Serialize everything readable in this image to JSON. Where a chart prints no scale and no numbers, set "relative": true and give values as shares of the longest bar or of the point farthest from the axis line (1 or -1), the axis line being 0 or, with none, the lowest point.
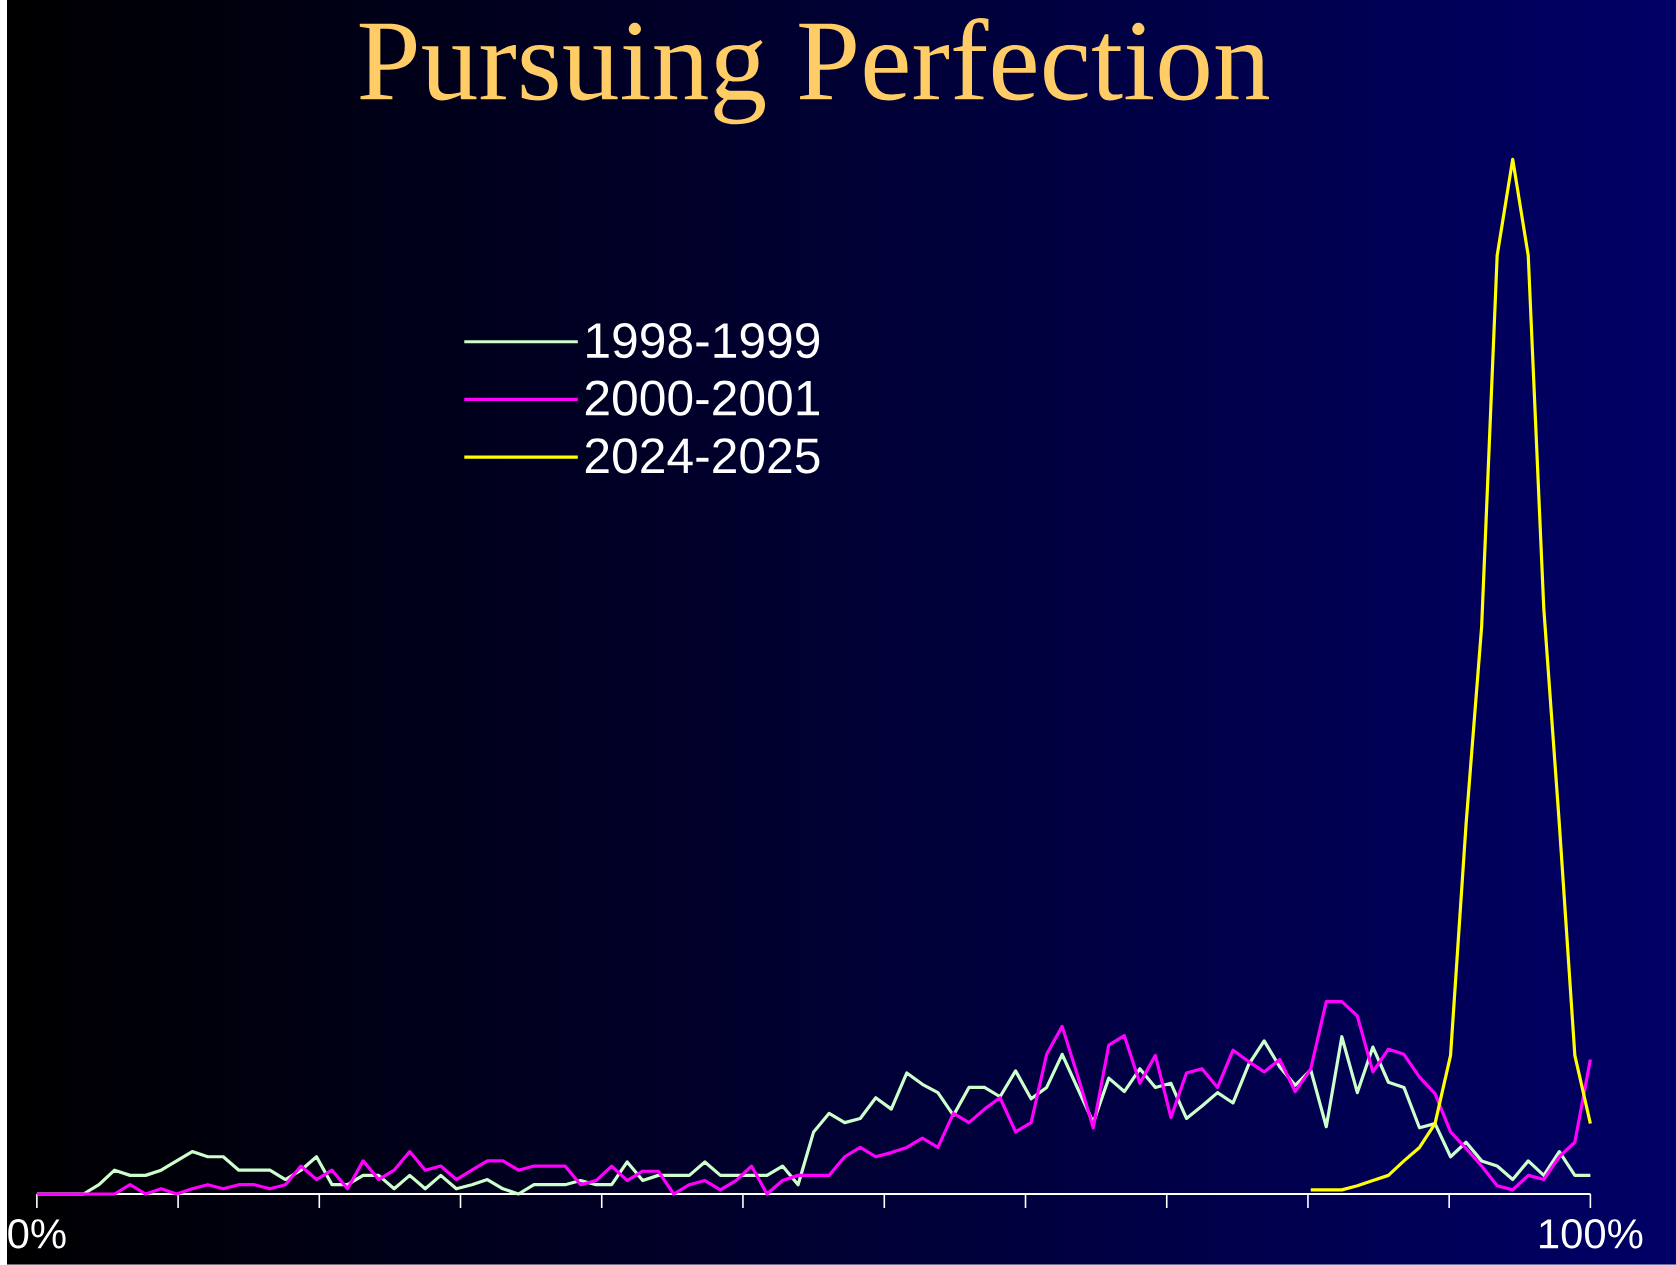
{
  "chart_data": {
    "type": "line",
    "title": "Pursuing Perfection",
    "relative": true,
    "tick_labels": "x",
    "legend": "top left",
    "x": [
      0,
      1,
      2,
      3,
      4,
      5,
      6,
      7,
      8,
      9,
      10,
      11,
      12,
      13,
      14,
      15,
      16,
      17,
      18,
      19,
      20,
      21,
      22,
      23,
      24,
      25,
      26,
      27,
      28,
      29,
      30,
      31,
      32,
      33,
      34,
      35,
      36,
      37,
      38,
      39,
      40,
      41,
      42,
      43,
      44,
      45,
      46,
      47,
      48,
      49,
      50,
      51,
      52,
      53,
      54,
      55,
      56,
      57,
      58,
      59,
      60,
      61,
      62,
      63,
      64,
      65,
      66,
      67,
      68,
      69,
      70,
      71,
      72,
      73,
      74,
      75,
      76,
      77,
      78,
      79,
      80,
      81,
      82,
      83,
      84,
      85,
      86,
      87,
      88,
      89,
      90,
      91,
      92,
      93,
      94,
      95,
      96,
      97,
      98,
      99,
      100
    ],
    "xlim": [
      0,
      100
    ],
    "xticks": [
      {
        "value": 0,
        "label": "0%"
      },
      {
        "value": 9.09,
        "label": null
      },
      {
        "value": 18.18,
        "label": null
      },
      {
        "value": 27.27,
        "label": null
      },
      {
        "value": 36.36,
        "label": null
      },
      {
        "value": 45.45,
        "label": null
      },
      {
        "value": 54.55,
        "label": null
      },
      {
        "value": 63.64,
        "label": null
      },
      {
        "value": 72.73,
        "label": null
      },
      {
        "value": 81.82,
        "label": null
      },
      {
        "value": 90.91,
        "label": null
      },
      {
        "value": 100,
        "label": "100%"
      }
    ],
    "series": [
      {
        "name": "1998-1999",
        "color": "#ccffcc",
        "values": [
          0,
          0,
          0,
          0,
          0.009,
          0.023,
          0.018,
          0.018,
          0.023,
          0.032,
          0.041,
          0.036,
          0.036,
          0.023,
          0.023,
          0.023,
          0.014,
          0.023,
          0.036,
          0.009,
          0.009,
          0.018,
          0.018,
          0.005,
          0.018,
          0.005,
          0.018,
          0.005,
          0.009,
          0.014,
          0.005,
          0,
          0.009,
          0.009,
          0.009,
          0.013,
          0.009,
          0.009,
          0.031,
          0.013,
          0.018,
          0.018,
          0.018,
          0.031,
          0.018,
          0.018,
          0.018,
          0.018,
          0.027,
          0.009,
          0.06,
          0.078,
          0.069,
          0.073,
          0.093,
          0.082,
          0.117,
          0.106,
          0.098,
          0.076,
          0.103,
          0.103,
          0.094,
          0.119,
          0.092,
          0.103,
          0.135,
          0.102,
          0.069,
          0.112,
          0.099,
          0.121,
          0.103,
          0.107,
          0.073,
          0.085,
          0.098,
          0.088,
          0.125,
          0.148,
          0.123,
          0.105,
          0.12,
          0.065,
          0.152,
          0.098,
          0.142,
          0.108,
          0.103,
          0.064,
          0.068,
          0.036,
          0.05,
          0.032,
          0.027,
          0.014,
          0.032,
          0.018,
          0.041,
          0.018,
          0.018
        ]
      },
      {
        "name": "2000-2001",
        "color": "#ff00ff",
        "values": [
          0,
          0,
          0,
          0,
          0,
          0,
          0.009,
          0,
          0.005,
          0,
          0.005,
          0.009,
          0.005,
          0.009,
          0.009,
          0.005,
          0.009,
          0.027,
          0.014,
          0.023,
          0.005,
          0.032,
          0.014,
          0.023,
          0.041,
          0.023,
          0.027,
          0.014,
          0.023,
          0.032,
          0.032,
          0.023,
          0.027,
          0.027,
          0.027,
          0.009,
          0.013,
          0.027,
          0.013,
          0.022,
          0.022,
          0,
          0.009,
          0.013,
          0.004,
          0.013,
          0.027,
          0,
          0.013,
          0.018,
          0.018,
          0.018,
          0.036,
          0.045,
          0.036,
          0.04,
          0.045,
          0.054,
          0.045,
          0.078,
          0.069,
          0.082,
          0.093,
          0.06,
          0.069,
          0.135,
          0.162,
          0.114,
          0.064,
          0.144,
          0.153,
          0.107,
          0.134,
          0.074,
          0.117,
          0.121,
          0.103,
          0.139,
          0.128,
          0.118,
          0.13,
          0.099,
          0.121,
          0.186,
          0.186,
          0.172,
          0.118,
          0.14,
          0.135,
          0.113,
          0.097,
          0.06,
          0.044,
          0.027,
          0.008,
          0.004,
          0.018,
          0.014,
          0.036,
          0.05,
          0.13
        ]
      },
      {
        "name": "2024-2025",
        "color": "#ffff00",
        "x": [
          82,
          83,
          84,
          85,
          86,
          87,
          88,
          89,
          90,
          91,
          92,
          93,
          94,
          95,
          96,
          97,
          98,
          99,
          100
        ],
        "values": [
          0.004,
          0.004,
          0.004,
          0.008,
          0.013,
          0.018,
          0.032,
          0.045,
          0.068,
          0.134,
          0.358,
          0.548,
          0.907,
          1,
          0.907,
          0.566,
          0.358,
          0.134,
          0.068
        ]
      }
    ]
  }
}
